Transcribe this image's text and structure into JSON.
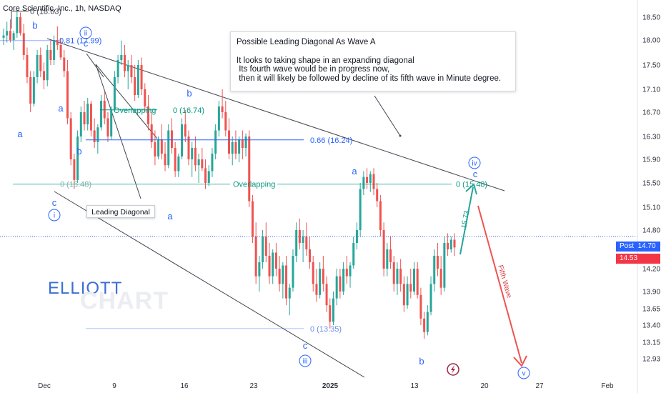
{
  "header": {
    "title": "Core Scientific, Inc., 1h, NASDAQ"
  },
  "note": {
    "title": "Possible Leading Diagonal As Wave A",
    "lines": [
      "It looks to taking shape in an expanding diagonal",
      " Its fourth wave would be in progress now,",
      " then it will likely be followed by decline of its fifth wave in Minute degree."
    ]
  },
  "leading_diagonal_label": "Leading Diagonal",
  "watermark": {
    "line1": "ELLIOTT",
    "line2": "CHART"
  },
  "price_tags": {
    "post_label": "Post",
    "post_value": "14.70",
    "last_value": "14.53"
  },
  "colors": {
    "up": "#26a69a",
    "down": "#ef5350",
    "fib_blue": "#2962ff",
    "fib_green": "#089981",
    "arrow_up": "#26a69a",
    "arrow_down": "#ef5350",
    "trend": "#434651"
  },
  "chart_data": {
    "type": "candlestick",
    "y_axis_ticks": [
      18.5,
      18.0,
      17.5,
      17.1,
      16.7,
      16.3,
      15.9,
      15.5,
      15.1,
      14.8,
      14.2,
      13.9,
      13.65,
      13.4,
      13.15,
      12.93
    ],
    "x_axis_ticks": [
      "Dec",
      "9",
      "16",
      "23",
      "2025",
      "13",
      "20",
      "27",
      "Feb"
    ],
    "ylim": [
      12.93,
      18.63
    ],
    "candles": [
      {
        "o": 18.05,
        "h": 18.25,
        "l": 17.9,
        "c": 18.1
      },
      {
        "o": 18.1,
        "h": 18.4,
        "l": 17.95,
        "c": 18.2
      },
      {
        "o": 18.2,
        "h": 18.45,
        "l": 17.95,
        "c": 18.0
      },
      {
        "o": 18.0,
        "h": 18.2,
        "l": 17.8,
        "c": 18.15
      },
      {
        "o": 18.15,
        "h": 18.63,
        "l": 18.05,
        "c": 18.5
      },
      {
        "o": 18.5,
        "h": 18.6,
        "l": 18.1,
        "c": 18.15
      },
      {
        "o": 18.15,
        "h": 18.35,
        "l": 17.6,
        "c": 17.7
      },
      {
        "o": 17.7,
        "h": 17.85,
        "l": 17.2,
        "c": 17.3
      },
      {
        "o": 17.3,
        "h": 17.4,
        "l": 16.7,
        "c": 16.85
      },
      {
        "o": 16.85,
        "h": 17.4,
        "l": 16.8,
        "c": 17.3
      },
      {
        "o": 17.3,
        "h": 17.8,
        "l": 17.2,
        "c": 17.7
      },
      {
        "o": 17.7,
        "h": 17.85,
        "l": 17.3,
        "c": 17.4
      },
      {
        "o": 17.4,
        "h": 17.55,
        "l": 17.1,
        "c": 17.25
      },
      {
        "o": 17.25,
        "h": 17.9,
        "l": 17.15,
        "c": 17.8
      },
      {
        "o": 17.8,
        "h": 18.0,
        "l": 17.5,
        "c": 17.6
      },
      {
        "o": 17.6,
        "h": 18.1,
        "l": 17.5,
        "c": 18.0
      },
      {
        "o": 18.0,
        "h": 18.3,
        "l": 17.8,
        "c": 17.9
      },
      {
        "o": 17.9,
        "h": 18.05,
        "l": 17.6,
        "c": 17.65
      },
      {
        "o": 17.65,
        "h": 17.8,
        "l": 17.3,
        "c": 17.4
      },
      {
        "o": 17.4,
        "h": 17.6,
        "l": 16.5,
        "c": 16.6
      },
      {
        "o": 16.6,
        "h": 16.7,
        "l": 15.8,
        "c": 15.9
      },
      {
        "o": 15.9,
        "h": 16.0,
        "l": 15.4,
        "c": 15.55
      },
      {
        "o": 15.55,
        "h": 16.4,
        "l": 15.5,
        "c": 16.3
      },
      {
        "o": 16.3,
        "h": 16.8,
        "l": 16.2,
        "c": 16.7
      },
      {
        "o": 16.7,
        "h": 16.9,
        "l": 16.4,
        "c": 16.5
      },
      {
        "o": 16.5,
        "h": 16.95,
        "l": 16.4,
        "c": 16.85
      },
      {
        "o": 16.85,
        "h": 16.9,
        "l": 16.3,
        "c": 16.4
      },
      {
        "o": 16.4,
        "h": 16.6,
        "l": 16.1,
        "c": 16.2
      },
      {
        "o": 16.2,
        "h": 16.5,
        "l": 16.0,
        "c": 16.45
      },
      {
        "o": 16.45,
        "h": 17.0,
        "l": 16.4,
        "c": 16.9
      },
      {
        "o": 16.9,
        "h": 17.05,
        "l": 16.5,
        "c": 16.6
      },
      {
        "o": 16.6,
        "h": 16.7,
        "l": 16.2,
        "c": 16.3
      },
      {
        "o": 16.3,
        "h": 16.8,
        "l": 16.25,
        "c": 16.75
      },
      {
        "o": 16.75,
        "h": 17.4,
        "l": 16.7,
        "c": 17.3
      },
      {
        "o": 17.3,
        "h": 17.7,
        "l": 17.2,
        "c": 17.6
      },
      {
        "o": 17.6,
        "h": 17.99,
        "l": 17.5,
        "c": 17.7
      },
      {
        "o": 17.7,
        "h": 17.9,
        "l": 17.3,
        "c": 17.4
      },
      {
        "o": 17.4,
        "h": 17.6,
        "l": 17.1,
        "c": 17.5
      },
      {
        "o": 17.5,
        "h": 17.7,
        "l": 17.2,
        "c": 17.3
      },
      {
        "o": 17.3,
        "h": 17.5,
        "l": 16.9,
        "c": 17.0
      },
      {
        "o": 17.0,
        "h": 17.6,
        "l": 16.95,
        "c": 17.5
      },
      {
        "o": 17.5,
        "h": 17.65,
        "l": 17.0,
        "c": 17.1
      },
      {
        "o": 17.1,
        "h": 17.2,
        "l": 16.7,
        "c": 16.8
      },
      {
        "o": 16.8,
        "h": 17.0,
        "l": 16.4,
        "c": 16.5
      },
      {
        "o": 16.5,
        "h": 16.7,
        "l": 16.1,
        "c": 16.2
      },
      {
        "o": 16.2,
        "h": 16.4,
        "l": 15.8,
        "c": 15.95
      },
      {
        "o": 15.95,
        "h": 16.3,
        "l": 15.9,
        "c": 16.25
      },
      {
        "o": 16.25,
        "h": 16.5,
        "l": 15.9,
        "c": 16.0
      },
      {
        "o": 16.0,
        "h": 16.2,
        "l": 15.7,
        "c": 15.8
      },
      {
        "o": 15.8,
        "h": 16.5,
        "l": 15.75,
        "c": 16.4
      },
      {
        "o": 16.4,
        "h": 16.6,
        "l": 16.0,
        "c": 16.1
      },
      {
        "o": 16.1,
        "h": 16.2,
        "l": 15.6,
        "c": 15.7
      },
      {
        "o": 15.7,
        "h": 16.0,
        "l": 15.6,
        "c": 15.95
      },
      {
        "o": 15.95,
        "h": 16.6,
        "l": 15.9,
        "c": 16.5
      },
      {
        "o": 16.5,
        "h": 16.74,
        "l": 16.2,
        "c": 16.3
      },
      {
        "o": 16.3,
        "h": 16.4,
        "l": 15.8,
        "c": 15.9
      },
      {
        "o": 15.9,
        "h": 16.2,
        "l": 15.6,
        "c": 16.1
      },
      {
        "o": 16.1,
        "h": 16.3,
        "l": 15.7,
        "c": 15.8
      },
      {
        "o": 15.8,
        "h": 16.0,
        "l": 15.5,
        "c": 15.9
      },
      {
        "o": 15.9,
        "h": 16.1,
        "l": 15.7,
        "c": 15.75
      },
      {
        "o": 15.75,
        "h": 15.9,
        "l": 15.4,
        "c": 15.5
      },
      {
        "o": 15.5,
        "h": 15.8,
        "l": 15.45,
        "c": 15.7
      },
      {
        "o": 15.7,
        "h": 16.1,
        "l": 15.6,
        "c": 16.0
      },
      {
        "o": 16.0,
        "h": 16.5,
        "l": 15.9,
        "c": 16.4
      },
      {
        "o": 16.4,
        "h": 16.9,
        "l": 16.3,
        "c": 16.8
      },
      {
        "o": 16.8,
        "h": 17.1,
        "l": 16.6,
        "c": 16.7
      },
      {
        "o": 16.7,
        "h": 16.9,
        "l": 16.3,
        "c": 16.4
      },
      {
        "o": 16.4,
        "h": 16.6,
        "l": 15.9,
        "c": 16.0
      },
      {
        "o": 16.0,
        "h": 16.3,
        "l": 15.8,
        "c": 16.2
      },
      {
        "o": 16.2,
        "h": 16.4,
        "l": 15.9,
        "c": 16.0
      },
      {
        "o": 16.0,
        "h": 16.3,
        "l": 15.85,
        "c": 16.25
      },
      {
        "o": 16.25,
        "h": 16.4,
        "l": 15.9,
        "c": 16.1
      },
      {
        "o": 16.1,
        "h": 16.35,
        "l": 15.95,
        "c": 16.3
      },
      {
        "o": 16.3,
        "h": 16.4,
        "l": 15.1,
        "c": 15.2
      },
      {
        "o": 15.2,
        "h": 15.3,
        "l": 14.6,
        "c": 14.7
      },
      {
        "o": 14.7,
        "h": 14.9,
        "l": 14.0,
        "c": 14.1
      },
      {
        "o": 14.1,
        "h": 14.4,
        "l": 13.9,
        "c": 14.3
      },
      {
        "o": 14.3,
        "h": 14.8,
        "l": 14.2,
        "c": 14.7
      },
      {
        "o": 14.7,
        "h": 14.9,
        "l": 14.3,
        "c": 14.4
      },
      {
        "o": 14.4,
        "h": 14.6,
        "l": 14.0,
        "c": 14.1
      },
      {
        "o": 14.1,
        "h": 14.5,
        "l": 14.0,
        "c": 14.45
      },
      {
        "o": 14.45,
        "h": 14.6,
        "l": 14.1,
        "c": 14.2
      },
      {
        "o": 14.2,
        "h": 14.4,
        "l": 13.9,
        "c": 14.0
      },
      {
        "o": 14.0,
        "h": 14.3,
        "l": 13.8,
        "c": 14.25
      },
      {
        "o": 14.25,
        "h": 14.4,
        "l": 13.7,
        "c": 13.8
      },
      {
        "o": 13.8,
        "h": 14.0,
        "l": 13.55,
        "c": 13.95
      },
      {
        "o": 13.95,
        "h": 14.5,
        "l": 13.9,
        "c": 14.4
      },
      {
        "o": 14.4,
        "h": 14.9,
        "l": 14.3,
        "c": 14.8
      },
      {
        "o": 14.8,
        "h": 14.95,
        "l": 14.5,
        "c": 14.6
      },
      {
        "o": 14.6,
        "h": 14.8,
        "l": 14.3,
        "c": 14.7
      },
      {
        "o": 14.7,
        "h": 14.9,
        "l": 14.4,
        "c": 14.5
      },
      {
        "o": 14.5,
        "h": 14.7,
        "l": 14.2,
        "c": 14.3
      },
      {
        "o": 14.3,
        "h": 14.4,
        "l": 13.9,
        "c": 14.0
      },
      {
        "o": 14.0,
        "h": 14.2,
        "l": 13.75,
        "c": 13.85
      },
      {
        "o": 13.85,
        "h": 14.3,
        "l": 13.8,
        "c": 14.2
      },
      {
        "o": 14.2,
        "h": 14.4,
        "l": 13.9,
        "c": 14.0
      },
      {
        "o": 14.0,
        "h": 14.1,
        "l": 13.6,
        "c": 13.7
      },
      {
        "o": 13.7,
        "h": 13.8,
        "l": 13.35,
        "c": 13.45
      },
      {
        "o": 13.45,
        "h": 13.9,
        "l": 13.4,
        "c": 13.8
      },
      {
        "o": 13.8,
        "h": 14.2,
        "l": 13.7,
        "c": 14.1
      },
      {
        "o": 14.1,
        "h": 14.2,
        "l": 13.8,
        "c": 13.9
      },
      {
        "o": 13.9,
        "h": 14.3,
        "l": 13.85,
        "c": 14.2
      },
      {
        "o": 14.2,
        "h": 14.4,
        "l": 14.0,
        "c": 14.1
      },
      {
        "o": 14.1,
        "h": 14.3,
        "l": 13.95,
        "c": 14.25
      },
      {
        "o": 14.25,
        "h": 14.7,
        "l": 14.2,
        "c": 14.6
      },
      {
        "o": 14.6,
        "h": 14.9,
        "l": 14.5,
        "c": 14.8
      },
      {
        "o": 14.8,
        "h": 15.5,
        "l": 14.7,
        "c": 15.4
      },
      {
        "o": 15.4,
        "h": 15.7,
        "l": 15.3,
        "c": 15.6
      },
      {
        "o": 15.6,
        "h": 15.75,
        "l": 15.4,
        "c": 15.5
      },
      {
        "o": 15.5,
        "h": 15.7,
        "l": 15.35,
        "c": 15.65
      },
      {
        "o": 15.65,
        "h": 15.75,
        "l": 15.3,
        "c": 15.4
      },
      {
        "o": 15.4,
        "h": 15.5,
        "l": 15.1,
        "c": 15.2
      },
      {
        "o": 15.2,
        "h": 15.3,
        "l": 14.7,
        "c": 14.8
      },
      {
        "o": 14.8,
        "h": 14.9,
        "l": 14.1,
        "c": 14.2
      },
      {
        "o": 14.2,
        "h": 14.6,
        "l": 14.1,
        "c": 14.5
      },
      {
        "o": 14.5,
        "h": 14.7,
        "l": 14.2,
        "c": 14.3
      },
      {
        "o": 14.3,
        "h": 14.4,
        "l": 13.9,
        "c": 14.0
      },
      {
        "o": 14.0,
        "h": 14.3,
        "l": 13.85,
        "c": 14.2
      },
      {
        "o": 14.2,
        "h": 14.35,
        "l": 13.9,
        "c": 14.0
      },
      {
        "o": 14.0,
        "h": 14.1,
        "l": 13.6,
        "c": 13.7
      },
      {
        "o": 13.7,
        "h": 14.1,
        "l": 13.65,
        "c": 14.0
      },
      {
        "o": 14.0,
        "h": 14.2,
        "l": 13.8,
        "c": 13.9
      },
      {
        "o": 13.9,
        "h": 14.3,
        "l": 13.85,
        "c": 14.2
      },
      {
        "o": 14.2,
        "h": 14.3,
        "l": 13.8,
        "c": 13.85
      },
      {
        "o": 13.85,
        "h": 13.95,
        "l": 13.4,
        "c": 13.5
      },
      {
        "o": 13.5,
        "h": 13.6,
        "l": 13.2,
        "c": 13.3
      },
      {
        "o": 13.3,
        "h": 13.7,
        "l": 13.25,
        "c": 13.6
      },
      {
        "o": 13.6,
        "h": 14.1,
        "l": 13.55,
        "c": 14.0
      },
      {
        "o": 14.0,
        "h": 14.5,
        "l": 13.9,
        "c": 14.4
      },
      {
        "o": 14.4,
        "h": 14.6,
        "l": 14.1,
        "c": 14.2
      },
      {
        "o": 14.2,
        "h": 14.4,
        "l": 13.85,
        "c": 13.95
      },
      {
        "o": 13.95,
        "h": 14.7,
        "l": 13.9,
        "c": 14.6
      },
      {
        "o": 14.6,
        "h": 14.75,
        "l": 14.4,
        "c": 14.5
      },
      {
        "o": 14.5,
        "h": 14.7,
        "l": 14.45,
        "c": 14.65
      },
      {
        "o": 14.65,
        "h": 14.75,
        "l": 14.4,
        "c": 14.53
      }
    ],
    "fib_levels": [
      {
        "label": "0 (18.63)",
        "value": 18.63
      },
      {
        "label": "0.81 (17.99)",
        "value": 17.99
      },
      {
        "label": "0 (16.74)",
        "value": 16.74
      },
      {
        "label": "0.66 (16.24)",
        "value": 16.24
      },
      {
        "label": "0 (15.48)",
        "value": 15.48
      },
      {
        "label": "0 (15.48)",
        "value": 15.48
      },
      {
        "label": "0 (13.35)",
        "value": 13.35
      }
    ],
    "annotations": {
      "overlapping_1": "Overlapping",
      "overlapping_2": "Overlapping",
      "up_arrow_value": "15.73",
      "fifth_wave": "Fifth Wave",
      "waves": {
        "a1": "a",
        "b1": "b",
        "c1": "c",
        "i": "i",
        "b_top": "b",
        "ii": "ii",
        "c_top": "c",
        "a_mid": "a",
        "b_mid": "b",
        "b_mid2": "b",
        "a_low": "a",
        "c_bottom": "c",
        "iii": "iii",
        "a_right": "a",
        "b_right": "b",
        "iv": "iv",
        "c_iv": "c",
        "v": "v"
      }
    }
  }
}
